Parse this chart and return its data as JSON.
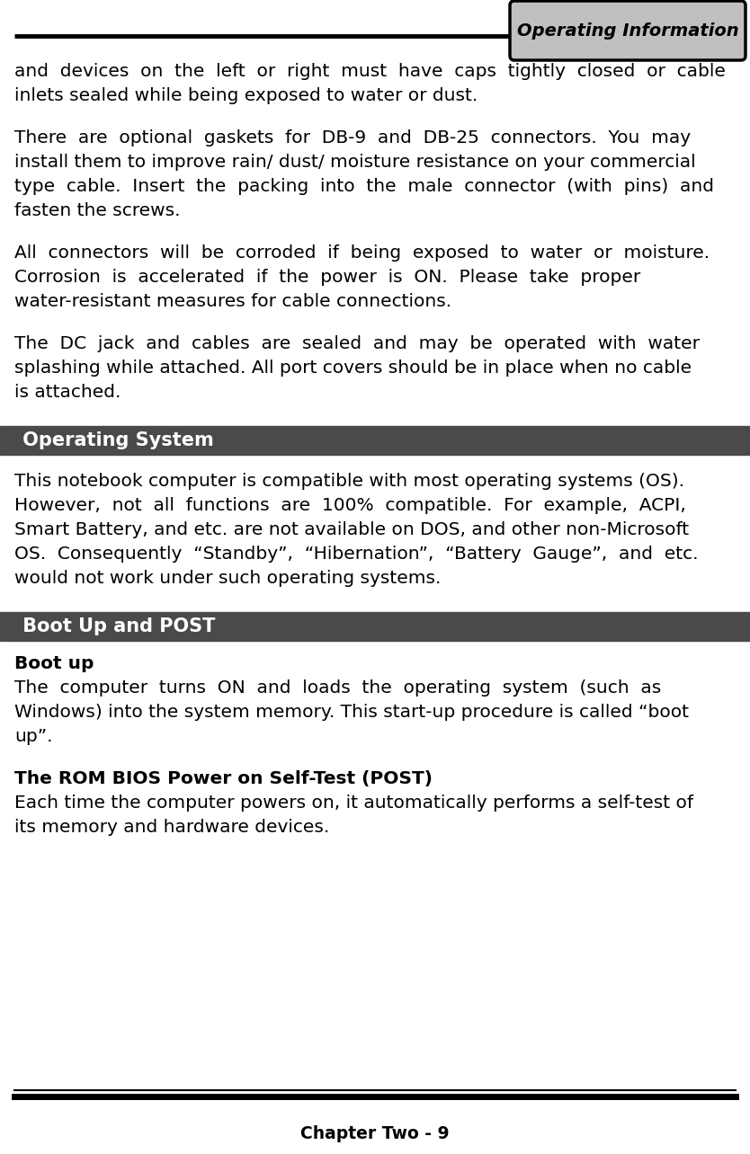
{
  "bg_color": "#ffffff",
  "text_color": "#000000",
  "header_box_color": "#c0c0c0",
  "header_text": "Operating Information",
  "section_bar_color": "#4a4a4a",
  "section_text_color": "#ffffff",
  "footer_text": "Chapter Two - 9",
  "para1_lines": [
    "and  devices  on  the  left  or  right  must  have  caps  tightly  closed  or  cable",
    "inlets sealed while being exposed to water or dust."
  ],
  "para2_lines": [
    "There  are  optional  gaskets  for  DB-9  and  DB-25  connectors.  You  may",
    "install them to improve rain/ dust/ moisture resistance on your commercial",
    "type  cable.  Insert  the  packing  into  the  male  connector  (with  pins)  and",
    "fasten the screws."
  ],
  "para3_lines": [
    "All  connectors  will  be  corroded  if  being  exposed  to  water  or  moisture.",
    "Corrosion  is  accelerated  if  the  power  is  ON.  Please  take  proper",
    "water-resistant measures for cable connections."
  ],
  "para4_lines": [
    "The  DC  jack  and  cables  are  sealed  and  may  be  operated  with  water",
    "splashing while attached. All port covers should be in place when no cable",
    "is attached."
  ],
  "section1_title": " Operating System",
  "sec1_lines": [
    "This notebook computer is compatible with most operating systems (OS).",
    "However,  not  all  functions  are  100%  compatible.  For  example,  ACPI,",
    "Smart Battery, and etc. are not available on DOS, and other non-Microsoft",
    "OS.  Consequently  “Standby”,  “Hibernation”,  “Battery  Gauge”,  and  etc.",
    "would not work under such operating systems."
  ],
  "section2_title": " Boot Up and POST",
  "boot_label": "Boot up",
  "boot_lines": [
    "The  computer  turns  ON  and  loads  the  operating  system  (such  as",
    "Windows) into the system memory. This start-up procedure is called “boot",
    "up”."
  ],
  "post_label": "The ROM BIOS Power on Self-Test (POST)",
  "post_lines": [
    "Each time the computer powers on, it automatically performs a self-test of",
    "its memory and hardware devices."
  ]
}
